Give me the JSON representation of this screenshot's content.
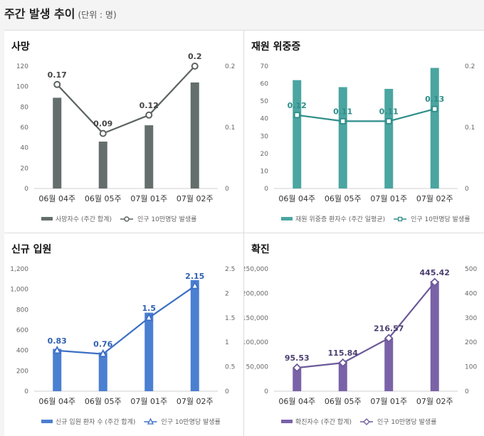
{
  "header": {
    "title": "주간 발생 추이",
    "unit": "(단위 : 명)"
  },
  "chart_data": [
    {
      "type": "bar+line",
      "title": "사망",
      "categories": [
        "06월 04주",
        "06월 05주",
        "07월 01주",
        "07월 02주"
      ],
      "bar_series": {
        "name": "사망자수 (주간 합계)",
        "values": [
          89,
          46,
          62,
          104
        ]
      },
      "line_series": {
        "name": "인구 10만명당 발생률",
        "values": [
          0.17,
          0.09,
          0.12,
          0.2
        ]
      },
      "line_labels": [
        "0.17",
        "0.09",
        "0.12",
        "0.2"
      ],
      "ylim": [
        0,
        120
      ],
      "y_ticks": [
        0,
        20,
        40,
        60,
        80,
        100,
        120
      ],
      "y_tick_labels": [
        "0",
        "20",
        "40",
        "60",
        "80",
        "100",
        "120"
      ],
      "y2lim": [
        0,
        0.2
      ],
      "y2_ticks": [
        0,
        0.1,
        0.2
      ],
      "y2_tick_labels": [
        "0",
        "0.1",
        "0.2"
      ],
      "bar_color": "#646e6c",
      "line_color": "#5b6361",
      "label_color": "#444444",
      "marker": "circle",
      "legend_position": "bottom"
    },
    {
      "type": "bar+line",
      "title": "재원 위중증",
      "categories": [
        "06월 04주",
        "06월 05주",
        "07월 01주",
        "07월 02주"
      ],
      "bar_series": {
        "name": "재원 위중증 환자수 (주간 일평균)",
        "values": [
          62,
          58,
          57,
          69
        ]
      },
      "line_series": {
        "name": "인구 10만명당 발생률",
        "values": [
          0.12,
          0.11,
          0.11,
          0.13
        ]
      },
      "line_labels": [
        "0.12",
        "0.11",
        "0.11",
        "0.13"
      ],
      "ylim": [
        0,
        70
      ],
      "y_ticks": [
        0,
        10,
        20,
        30,
        40,
        50,
        60,
        70
      ],
      "y_tick_labels": [
        "0",
        "10",
        "20",
        "30",
        "40",
        "50",
        "60",
        "70"
      ],
      "y2lim": [
        0,
        0.2
      ],
      "y2_ticks": [
        0,
        0.1,
        0.2
      ],
      "y2_tick_labels": [
        "0",
        "0.1",
        "0.2"
      ],
      "bar_color": "#4ba5a0",
      "line_color": "#2e8e89",
      "label_color": "#2e8e89",
      "marker": "square",
      "legend_position": "bottom"
    },
    {
      "type": "bar+line",
      "title": "신규 입원",
      "categories": [
        "06월 04주",
        "06월 05주",
        "07월 01주",
        "07월 02주"
      ],
      "bar_series": {
        "name": "신규 입원 환자 수 (주간 합계)",
        "values": [
          415,
          380,
          770,
          1090
        ]
      },
      "line_series": {
        "name": "인구 10만명당 발생률",
        "values": [
          0.83,
          0.76,
          1.5,
          2.15
        ]
      },
      "line_labels": [
        "0.83",
        "0.76",
        "1.5",
        "2.15"
      ],
      "ylim": [
        0,
        1200
      ],
      "y_ticks": [
        0,
        200,
        400,
        600,
        800,
        1000,
        1200
      ],
      "y_tick_labels": [
        "0",
        "200",
        "400",
        "600",
        "800",
        "1,000",
        "1,200"
      ],
      "y2lim": [
        0,
        2.5
      ],
      "y2_ticks": [
        0,
        0.5,
        1,
        1.5,
        2,
        2.5
      ],
      "y2_tick_labels": [
        "0",
        "0.5",
        "1",
        "1.5",
        "2",
        "2.5"
      ],
      "bar_color": "#4a7fd1",
      "line_color": "#3c6fc4",
      "label_color": "#2f5fb0",
      "marker": "triangle",
      "legend_position": "bottom"
    },
    {
      "type": "bar+line",
      "title": "확진",
      "categories": [
        "06월 04주",
        "06월 05주",
        "07월 01주",
        "07월 02주"
      ],
      "bar_series": {
        "name": "확진자수 (주간 합계)",
        "values": [
          48000,
          60000,
          108000,
          225000
        ]
      },
      "line_series": {
        "name": "인구 10만명당 발생률",
        "values": [
          95.53,
          115.84,
          216.57,
          445.42
        ]
      },
      "line_labels": [
        "95.53",
        "115.84",
        "216.57",
        "445.42"
      ],
      "ylim": [
        0,
        250000
      ],
      "y_ticks": [
        0,
        50000,
        100000,
        150000,
        200000,
        250000
      ],
      "y_tick_labels": [
        "0",
        "50,000",
        "100,000",
        "150,000",
        "200,000",
        "250,000"
      ],
      "y2lim": [
        0,
        500
      ],
      "y2_ticks": [
        0,
        100,
        200,
        300,
        400,
        500
      ],
      "y2_tick_labels": [
        "0",
        "100",
        "200",
        "300",
        "400",
        "500"
      ],
      "bar_color": "#7a62a8",
      "line_color": "#6d5a9a",
      "label_color": "#4a3e70",
      "marker": "diamond",
      "legend_position": "bottom"
    }
  ]
}
